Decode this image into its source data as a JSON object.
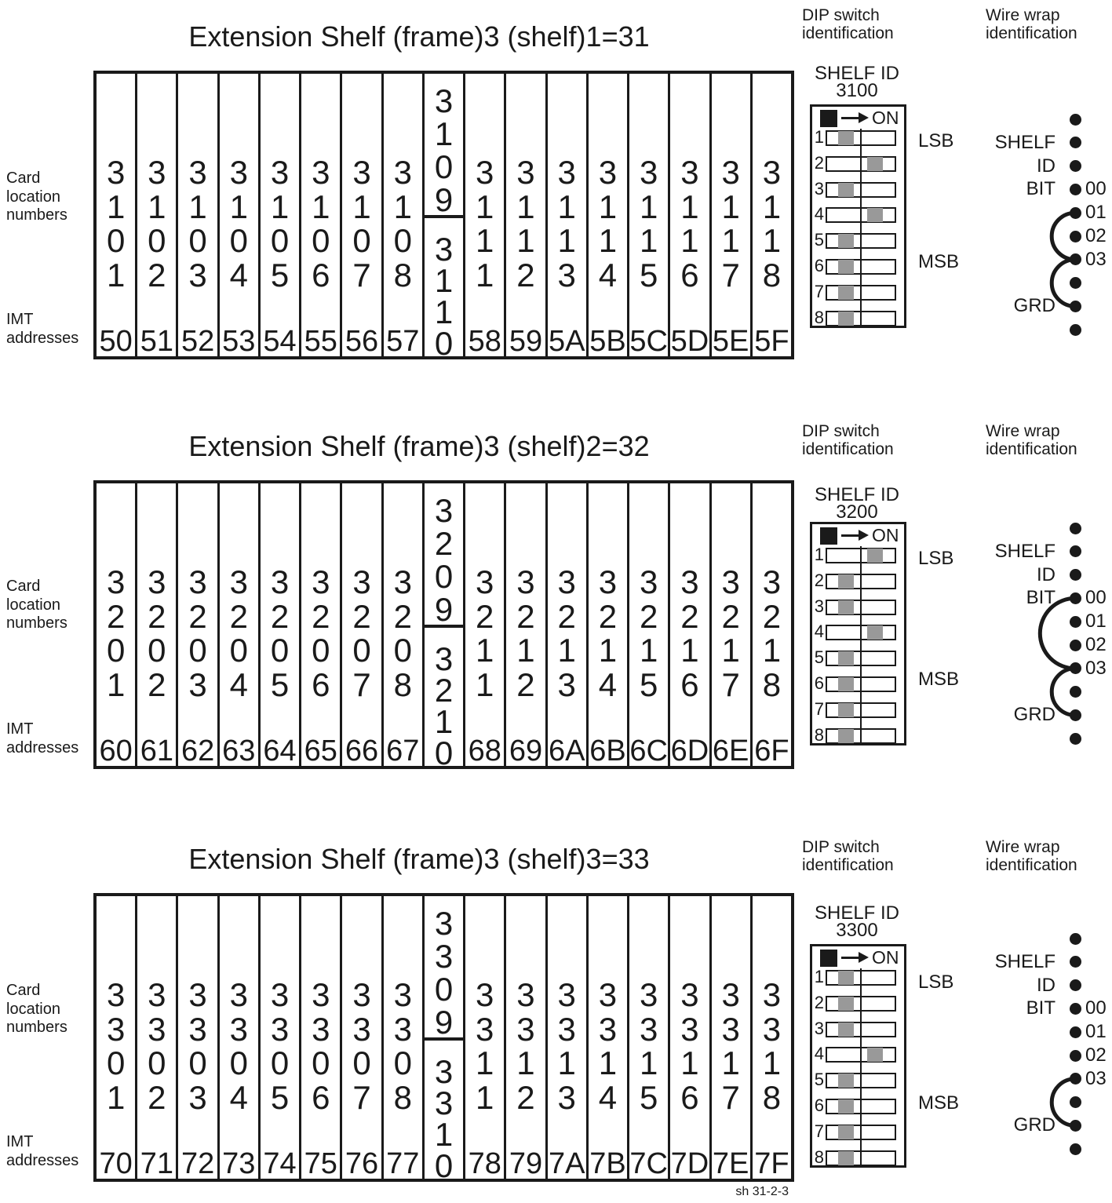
{
  "labels": {
    "card_location": "Card\nlocation\nnumbers",
    "imt": "IMT\naddresses",
    "dip_header": "DIP switch\nidentification",
    "wire_header": "Wire wrap\nidentification",
    "shelf_id": "SHELF ID",
    "on": "ON",
    "lsb": "LSB",
    "msb": "MSB",
    "footer": "sh 31-2-3"
  },
  "colors": {
    "ink": "#1a1a1a",
    "switch_knob_gray": "#999999"
  },
  "sections": [
    {
      "title": "Extension Shelf (frame)3 (shelf)1=31",
      "shelf_id_value": "3100",
      "cards_left": [
        "3101",
        "3102",
        "3103",
        "3104",
        "3105",
        "3106",
        "3107",
        "3108"
      ],
      "card_split": [
        "3109",
        "3110"
      ],
      "cards_right": [
        "3111",
        "3112",
        "3113",
        "3114",
        "3115",
        "3116",
        "3117",
        "3118"
      ],
      "imt_left": [
        "50",
        "51",
        "52",
        "53",
        "54",
        "55",
        "56",
        "57"
      ],
      "imt_right": [
        "58",
        "59",
        "5A",
        "5B",
        "5C",
        "5D",
        "5E",
        "5F"
      ],
      "dip_switches": [
        {
          "num": "1",
          "on": false
        },
        {
          "num": "2",
          "on": true
        },
        {
          "num": "3",
          "on": false
        },
        {
          "num": "4",
          "on": true
        },
        {
          "num": "5",
          "on": false
        },
        {
          "num": "6",
          "on": false
        },
        {
          "num": "7",
          "on": false
        },
        {
          "num": "8",
          "on": false
        }
      ],
      "wire_wrap": {
        "shelf": "SHELF",
        "id": "ID",
        "bit": "BIT",
        "grd": "GRD",
        "bit_labels": [
          "00",
          "01",
          "02",
          "03"
        ],
        "dot_count": 10,
        "connections": [
          [
            4,
            6
          ],
          [
            6,
            8
          ]
        ]
      }
    },
    {
      "title": "Extension Shelf (frame)3 (shelf)2=32",
      "shelf_id_value": "3200",
      "cards_left": [
        "3201",
        "3202",
        "3203",
        "3204",
        "3205",
        "3206",
        "3207",
        "3208"
      ],
      "card_split": [
        "3209",
        "3210"
      ],
      "cards_right": [
        "3211",
        "3212",
        "3213",
        "3214",
        "3215",
        "3216",
        "3217",
        "3218"
      ],
      "imt_left": [
        "60",
        "61",
        "62",
        "63",
        "64",
        "65",
        "66",
        "67"
      ],
      "imt_right": [
        "68",
        "69",
        "6A",
        "6B",
        "6C",
        "6D",
        "6E",
        "6F"
      ],
      "dip_switches": [
        {
          "num": "1",
          "on": true
        },
        {
          "num": "2",
          "on": false
        },
        {
          "num": "3",
          "on": false
        },
        {
          "num": "4",
          "on": true
        },
        {
          "num": "5",
          "on": false
        },
        {
          "num": "6",
          "on": false
        },
        {
          "num": "7",
          "on": false
        },
        {
          "num": "8",
          "on": false
        }
      ],
      "wire_wrap": {
        "shelf": "SHELF",
        "id": "ID",
        "bit": "BIT",
        "grd": "GRD",
        "bit_labels": [
          "00",
          "01",
          "02",
          "03"
        ],
        "dot_count": 10,
        "connections": [
          [
            3,
            6
          ],
          [
            6,
            8
          ]
        ]
      }
    },
    {
      "title": "Extension Shelf (frame)3 (shelf)3=33",
      "shelf_id_value": "3300",
      "cards_left": [
        "3301",
        "3302",
        "3303",
        "3304",
        "3305",
        "3306",
        "3307",
        "3308"
      ],
      "card_split": [
        "3309",
        "3310"
      ],
      "cards_right": [
        "3311",
        "3312",
        "3313",
        "3314",
        "3315",
        "3316",
        "3317",
        "3318"
      ],
      "imt_left": [
        "70",
        "71",
        "72",
        "73",
        "74",
        "75",
        "76",
        "77"
      ],
      "imt_right": [
        "78",
        "79",
        "7A",
        "7B",
        "7C",
        "7D",
        "7E",
        "7F"
      ],
      "dip_switches": [
        {
          "num": "1",
          "on": false
        },
        {
          "num": "2",
          "on": false
        },
        {
          "num": "3",
          "on": false
        },
        {
          "num": "4",
          "on": true
        },
        {
          "num": "5",
          "on": false
        },
        {
          "num": "6",
          "on": false
        },
        {
          "num": "7",
          "on": false
        },
        {
          "num": "8",
          "on": false
        }
      ],
      "wire_wrap": {
        "shelf": "SHELF",
        "id": "ID",
        "bit": "BIT",
        "grd": "GRD",
        "bit_labels": [
          "00",
          "01",
          "02",
          "03"
        ],
        "dot_count": 10,
        "connections": [
          [
            6,
            8
          ]
        ]
      }
    }
  ]
}
